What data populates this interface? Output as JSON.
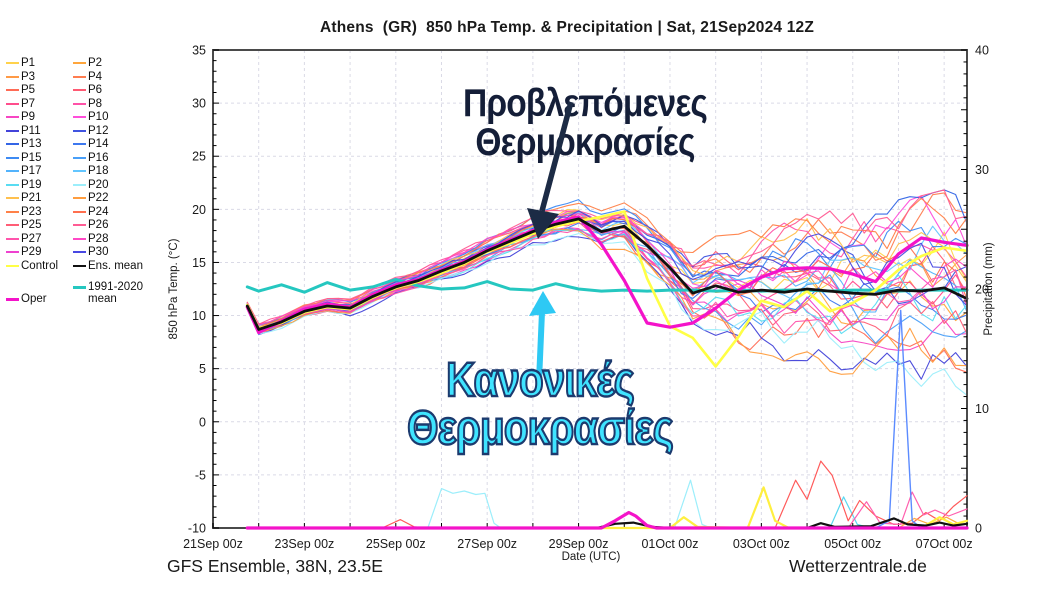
{
  "chart": {
    "title": "Athens  (GR)  850 hPa Temp. & Precipitation | Sat, 21Sep2024 12Z",
    "footer_left": "GFS Ensemble, 38N, 23.5E",
    "footer_right": "Wetterzentrale.de"
  },
  "annotations": {
    "forecast_label": "Προβλεπόμενες Θερμοκρασίες",
    "normals_label": "Κανονικές Θερμοκρασίες",
    "forecast_arrow_color": "#1c2b45",
    "normals_arrow_color": "#2ec9f4"
  },
  "colors": {
    "grid": "#dadae6",
    "axis_border": "#4a4a4a",
    "tick": "#000000",
    "text": "#1a1a1a"
  },
  "legend": {
    "members": [
      {
        "label": "P1",
        "color": "#ffd24b",
        "bias": 0.55
      },
      {
        "label": "P2",
        "color": "#ffa63c",
        "bias": -0.3
      },
      {
        "label": "P3",
        "color": "#ff9a46",
        "bias": 0.2
      },
      {
        "label": "P4",
        "color": "#ff7d50",
        "bias": 0.75
      },
      {
        "label": "P5",
        "color": "#ff6b55",
        "bias": -0.6
      },
      {
        "label": "P6",
        "color": "#ff5a73",
        "bias": 0.35
      },
      {
        "label": "P7",
        "color": "#ff4d8c",
        "bias": -0.15
      },
      {
        "label": "P8",
        "color": "#ff52a8",
        "bias": 0.9
      },
      {
        "label": "P9",
        "color": "#f746c3",
        "bias": -0.45
      },
      {
        "label": "P10",
        "color": "#ff4fdb",
        "bias": 0.6
      },
      {
        "label": "P11",
        "color": "#4343d9",
        "bias": -0.8
      },
      {
        "label": "P12",
        "color": "#4054e0",
        "bias": 0.25
      },
      {
        "label": "P13",
        "color": "#3365e6",
        "bias": 0.5
      },
      {
        "label": "P14",
        "color": "#3d78ef",
        "bias": -0.2
      },
      {
        "label": "P15",
        "color": "#3d8af3",
        "bias": 0.85
      },
      {
        "label": "P16",
        "color": "#499ff8",
        "bias": -0.55
      },
      {
        "label": "P17",
        "color": "#53b3fc",
        "bias": 0.1
      },
      {
        "label": "P18",
        "color": "#63c6ff",
        "bias": 0.7
      },
      {
        "label": "P19",
        "color": "#59dcf2",
        "bias": -0.35
      },
      {
        "label": "P20",
        "color": "#9ceefb",
        "bias": -0.95
      },
      {
        "label": "P21",
        "color": "#ffc04e",
        "bias": 0.4
      },
      {
        "label": "P22",
        "color": "#ff9d3e",
        "bias": -0.7
      },
      {
        "label": "P23",
        "color": "#ff8148",
        "bias": 0.95
      },
      {
        "label": "P24",
        "color": "#ff6f4e",
        "bias": 0.05
      },
      {
        "label": "P25",
        "color": "#ff5d76",
        "bias": -0.25
      },
      {
        "label": "P26",
        "color": "#ff5c94",
        "bias": 1.0
      },
      {
        "label": "P27",
        "color": "#ff54ac",
        "bias": -0.5
      },
      {
        "label": "P28",
        "color": "#ff49c6",
        "bias": 0.65
      },
      {
        "label": "P29",
        "color": "#ef41d0",
        "bias": -0.1
      },
      {
        "label": "P30",
        "color": "#4848e2",
        "bias": 0.3
      }
    ],
    "control": {
      "label": "Control",
      "color": "#ffff45"
    },
    "ens_mean": {
      "label": "Ens. mean",
      "color": "#111111"
    },
    "climate": {
      "label_line1": "1991-2020",
      "label_line2": "mean",
      "color": "#25c7c0"
    },
    "oper": {
      "label": "Oper",
      "color": "#f413c9"
    }
  },
  "chart_data": {
    "type": "line",
    "title": "Athens (GR) 850 hPa Temp. & Precipitation | Sat, 21Sep2024 12Z",
    "x_axis": {
      "label": "Date (UTC)",
      "tick_labels": [
        "21Sep 00z",
        "23Sep 00z",
        "25Sep 00z",
        "27Sep 00z",
        "29Sep 00z",
        "01Oct 00z",
        "03Oct 00z",
        "05Oct 00z",
        "07Oct 00z"
      ],
      "tick_days": [
        0,
        2,
        4,
        6,
        8,
        10,
        12,
        14,
        16
      ],
      "day_min": 0,
      "day_max": 16.5,
      "grid_step_days": 1
    },
    "y_left": {
      "label": "850 hPa Temp. (°C)",
      "min": -10,
      "max": 35,
      "major": 5,
      "minor": 1,
      "tick_values": [
        35,
        30,
        25,
        20,
        15,
        10,
        5,
        0,
        -5,
        -10
      ]
    },
    "y_right": {
      "label": "Precipitation (mm)",
      "min": 0,
      "max": 40,
      "major": 10,
      "minor": 1,
      "tick_values": [
        40,
        30,
        20,
        10,
        0
      ]
    },
    "time_days": [
      0.75,
      1,
      1.5,
      2,
      2.5,
      3,
      3.5,
      4,
      4.5,
      5,
      5.5,
      6,
      6.5,
      7,
      7.5,
      8,
      8.5,
      9,
      9.5,
      10,
      10.5,
      11,
      11.5,
      12,
      12.5,
      13,
      13.5,
      14,
      14.5,
      15,
      15.5,
      16,
      16.5
    ],
    "series": {
      "ens_mean_temp": [
        10.9,
        8.7,
        9.4,
        10.4,
        10.9,
        10.7,
        11.8,
        12.7,
        13.3,
        14.2,
        15.0,
        16.1,
        17.0,
        17.9,
        18.6,
        19.1,
        17.9,
        18.4,
        16.6,
        14.5,
        12.1,
        12.8,
        12.2,
        12.4,
        12.2,
        12.5,
        12.3,
        12.1,
        12.0,
        12.4,
        12.3,
        12.6,
        11.6
      ],
      "oper_temp": [
        10.8,
        8.4,
        9.5,
        10.6,
        11.1,
        10.8,
        12.0,
        12.9,
        13.4,
        14.3,
        15.1,
        16.2,
        17.1,
        18.0,
        18.8,
        19.3,
        16.7,
        13.3,
        9.3,
        8.9,
        9.3,
        10.7,
        12.4,
        13.6,
        14.4,
        14.5,
        14.4,
        13.9,
        13.2,
        15.8,
        17.3,
        16.9,
        16.6
      ],
      "control_temp": [
        11.0,
        8.8,
        9.3,
        10.3,
        10.8,
        10.6,
        11.7,
        12.6,
        13.2,
        14.0,
        14.9,
        16.0,
        16.8,
        17.7,
        18.4,
        18.9,
        19.3,
        19.8,
        13.5,
        9.0,
        7.9,
        5.2,
        8.0,
        11.4,
        10.8,
        12.3,
        10.4,
        11.2,
        12.4,
        14.3,
        15.6,
        16.4,
        16.1
      ],
      "climate_mean_temp": [
        12.7,
        12.3,
        12.9,
        12.2,
        13.1,
        12.4,
        12.7,
        13.4,
        12.8,
        12.5,
        12.6,
        13.2,
        12.5,
        12.4,
        13.0,
        12.5,
        12.3,
        12.4,
        12.3,
        12.4,
        12.4,
        12.3,
        12.4,
        12.3,
        12.4,
        12.4,
        12.3,
        12.4,
        12.4,
        12.3,
        12.4,
        12.4,
        12.4
      ]
    },
    "ensemble_envelope": [
      0.35,
      0.5,
      0.5,
      0.55,
      0.6,
      0.65,
      0.7,
      0.75,
      0.8,
      0.9,
      1.0,
      1.0,
      1.1,
      1.2,
      1.3,
      1.4,
      1.5,
      1.7,
      2.0,
      2.4,
      3.0,
      3.6,
      4.2,
      4.6,
      5.0,
      5.4,
      5.8,
      6.1,
      6.4,
      6.7,
      6.9,
      7.1,
      7.2
    ],
    "member_noise": {
      "seed_base": 7,
      "step_days": 0.25,
      "walk_amp": 0.6,
      "pull": 0.18,
      "clamp": 1.3
    },
    "precip_series": [
      {
        "name": "member-cyan-precip",
        "color": "#9ceefb",
        "width": 1.2,
        "points": [
          [
            4.7,
            0
          ],
          [
            5.0,
            3.3
          ],
          [
            5.25,
            2.9
          ],
          [
            5.5,
            3.1
          ],
          [
            5.75,
            2.8
          ],
          [
            5.95,
            2.9
          ],
          [
            6.15,
            0.4
          ],
          [
            6.3,
            0
          ],
          [
            10.1,
            0
          ],
          [
            10.45,
            4.0
          ],
          [
            10.7,
            0.3
          ],
          [
            10.9,
            0
          ]
        ]
      },
      {
        "name": "member-cyan2-precip",
        "color": "#59d7f0",
        "width": 1.2,
        "points": [
          [
            13.5,
            0
          ],
          [
            13.8,
            2.6
          ],
          [
            14.1,
            0.3
          ],
          [
            14.4,
            0
          ]
        ]
      },
      {
        "name": "member-red-precip",
        "color": "#ff5a5a",
        "width": 1.2,
        "points": [
          [
            0.75,
            0
          ],
          [
            3.7,
            0
          ],
          [
            4.1,
            0.7
          ],
          [
            4.4,
            0.1
          ],
          [
            4.7,
            0
          ],
          [
            12.3,
            0
          ],
          [
            12.75,
            4.0
          ],
          [
            13.0,
            2.4
          ],
          [
            13.3,
            5.6
          ],
          [
            13.55,
            4.4
          ],
          [
            13.9,
            0.6
          ],
          [
            14.15,
            2.3
          ],
          [
            14.5,
            1.0
          ],
          [
            14.9,
            0.3
          ],
          [
            15.3,
            0.4
          ],
          [
            15.6,
            1.3
          ],
          [
            15.9,
            0.6
          ],
          [
            16.2,
            1.8
          ],
          [
            16.5,
            2.7
          ]
        ]
      },
      {
        "name": "member-pink-precip",
        "color": "#ff5fae",
        "width": 1.2,
        "points": [
          [
            0.75,
            0
          ],
          [
            13.9,
            0
          ],
          [
            14.3,
            2.2
          ],
          [
            14.6,
            0.4
          ],
          [
            15.05,
            0.3
          ],
          [
            15.3,
            3.0
          ],
          [
            15.55,
            1.1
          ],
          [
            15.8,
            1.5
          ],
          [
            16.1,
            1.0
          ],
          [
            16.5,
            1.6
          ]
        ]
      },
      {
        "name": "member-orange-precip",
        "color": "#ffab44",
        "width": 1.2,
        "points": [
          [
            15.0,
            0
          ],
          [
            15.35,
            0.8
          ],
          [
            15.7,
            0.3
          ],
          [
            16.05,
            0.9
          ],
          [
            16.3,
            0.4
          ],
          [
            16.5,
            0.6
          ]
        ]
      },
      {
        "name": "member-blue-precip",
        "color": "#5b8bff",
        "width": 1.4,
        "points": [
          [
            14.5,
            0
          ],
          [
            14.8,
            0.6
          ],
          [
            15.05,
            18.2
          ],
          [
            15.3,
            0.6
          ],
          [
            15.5,
            0
          ]
        ]
      },
      {
        "name": "control-precip",
        "color": "#ffef3f",
        "width": 2.2,
        "points": [
          [
            0.75,
            0
          ],
          [
            10.0,
            0
          ],
          [
            10.3,
            0.9
          ],
          [
            10.6,
            0.1
          ],
          [
            11.7,
            0
          ],
          [
            12.05,
            3.4
          ],
          [
            12.3,
            0.6
          ],
          [
            12.6,
            0
          ],
          [
            15.5,
            0
          ],
          [
            15.9,
            0.9
          ],
          [
            16.2,
            0.3
          ],
          [
            16.5,
            0.6
          ]
        ]
      },
      {
        "name": "ens-mean-precip",
        "color": "#101010",
        "width": 2.2,
        "points": [
          [
            0.75,
            0
          ],
          [
            8.4,
            0
          ],
          [
            8.8,
            0.35
          ],
          [
            9.2,
            0.45
          ],
          [
            9.6,
            0.1
          ],
          [
            10.0,
            0
          ],
          [
            13.0,
            0
          ],
          [
            13.3,
            0.4
          ],
          [
            13.6,
            0.1
          ],
          [
            14.4,
            0.15
          ],
          [
            14.9,
            0.8
          ],
          [
            15.2,
            0.3
          ],
          [
            15.6,
            0.2
          ],
          [
            15.9,
            0.45
          ],
          [
            16.2,
            0.2
          ],
          [
            16.5,
            0.35
          ]
        ]
      },
      {
        "name": "oper-precip",
        "color": "#f413c9",
        "width": 3.2,
        "points": [
          [
            0.75,
            0
          ],
          [
            8.5,
            0
          ],
          [
            8.8,
            0.6
          ],
          [
            9.1,
            1.3
          ],
          [
            9.25,
            1.0
          ],
          [
            9.5,
            0.2
          ],
          [
            9.7,
            0
          ],
          [
            16.5,
            0
          ]
        ]
      }
    ]
  }
}
